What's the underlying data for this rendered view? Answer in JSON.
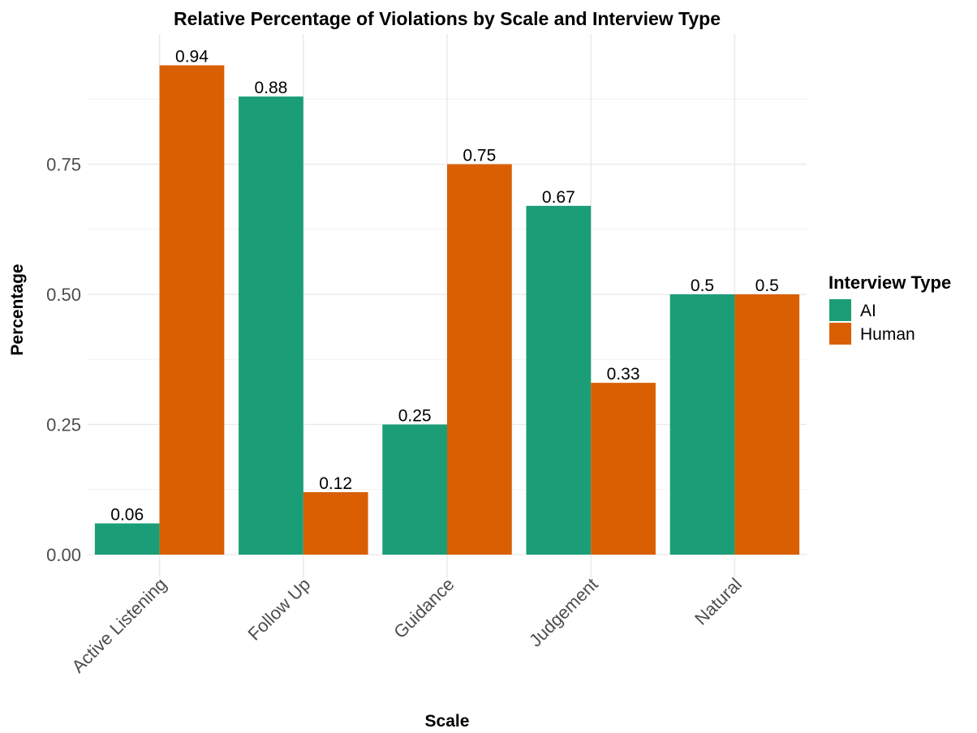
{
  "chart_data": {
    "type": "bar",
    "title": "Relative Percentage of Violations by Scale and Interview Type",
    "xlabel": "Scale",
    "ylabel": "Percentage",
    "categories": [
      "Active Listening",
      "Follow Up",
      "Guidance",
      "Judgement",
      "Natural"
    ],
    "series": [
      {
        "name": "AI",
        "color": "#1b9e77",
        "values": [
          0.06,
          0.88,
          0.25,
          0.67,
          0.5
        ],
        "labels": [
          "0.06",
          "0.88",
          "0.25",
          "0.67",
          "0.5"
        ]
      },
      {
        "name": "Human",
        "color": "#d95f02",
        "values": [
          0.94,
          0.12,
          0.75,
          0.33,
          0.5
        ],
        "labels": [
          "0.94",
          "0.12",
          "0.75",
          "0.33",
          "0.5"
        ]
      }
    ],
    "ylim": [
      0,
      0.94
    ],
    "yticks": [
      0,
      0.25,
      0.5,
      0.75
    ],
    "ytick_labels": [
      "0.00",
      "0.25",
      "0.50",
      "0.75"
    ],
    "grid": true,
    "legend": {
      "title": "Interview Type",
      "position": "right"
    }
  }
}
